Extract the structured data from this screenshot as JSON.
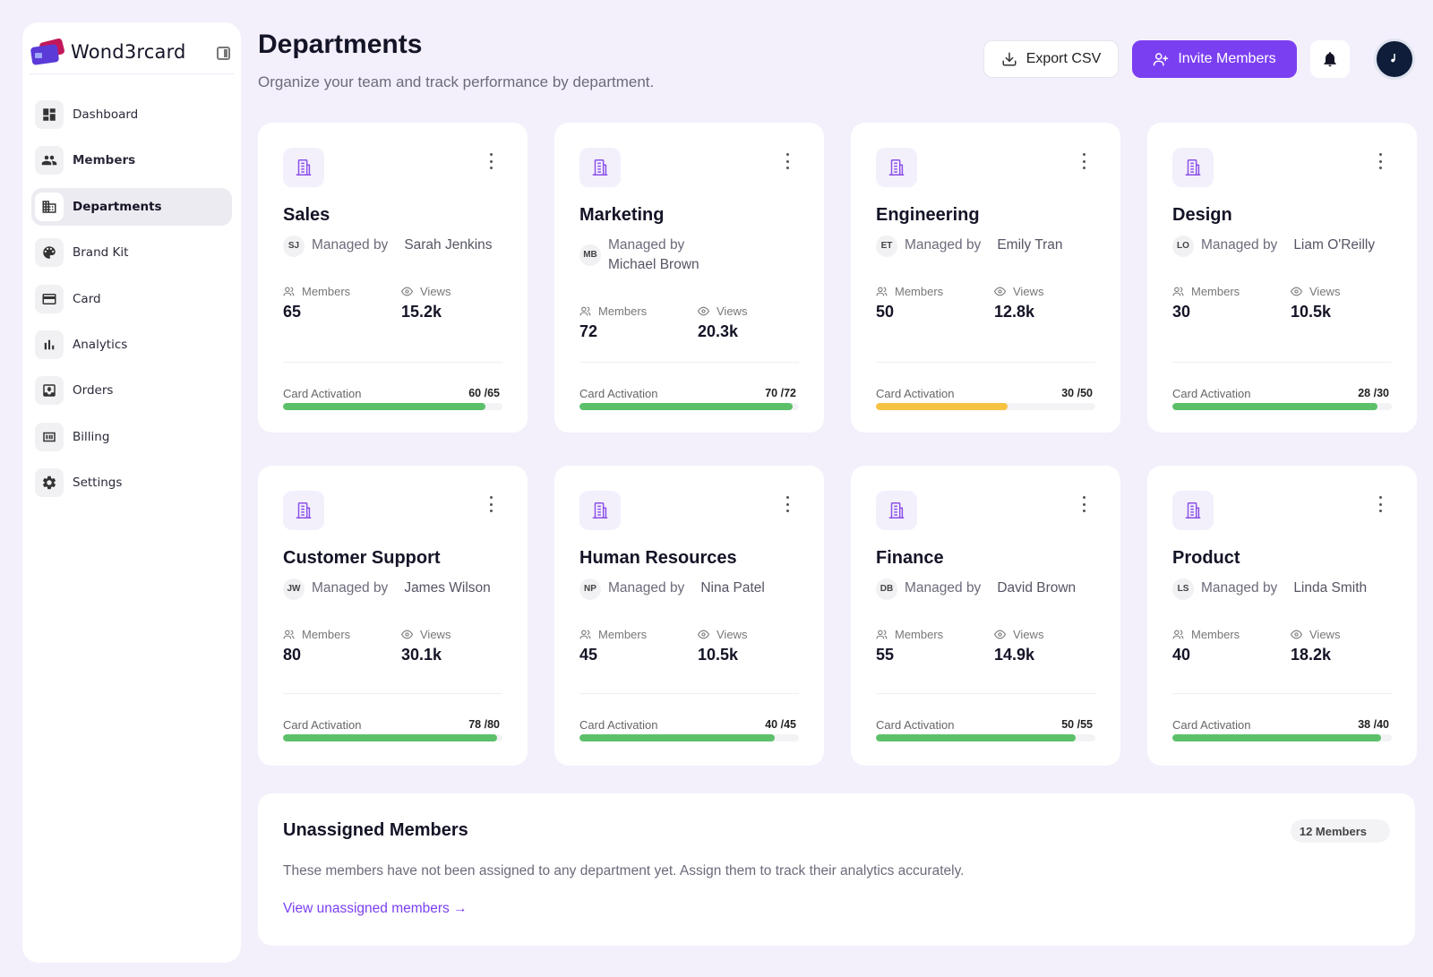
{
  "app": {
    "brand": "Wond3rcard"
  },
  "sidebar": {
    "items": [
      {
        "label": "Dashboard",
        "icon": "dashboard-icon"
      },
      {
        "label": "Members",
        "icon": "members-icon"
      },
      {
        "label": "Departments",
        "icon": "departments-icon",
        "active": true
      },
      {
        "label": "Brand Kit",
        "icon": "palette-icon"
      },
      {
        "label": "Card",
        "icon": "card-icon"
      },
      {
        "label": "Analytics",
        "icon": "analytics-icon"
      },
      {
        "label": "Orders",
        "icon": "orders-icon"
      },
      {
        "label": "Billing",
        "icon": "billing-icon"
      },
      {
        "label": "Settings",
        "icon": "gear-icon"
      }
    ]
  },
  "header": {
    "title": "Departments",
    "subtitle": "Organize your team and track performance by department.",
    "export_label": "Export CSV",
    "invite_label": "Invite Members"
  },
  "labels": {
    "managed_by": "Managed by",
    "members": "Members",
    "views": "Views",
    "card_activation": "Card Activation"
  },
  "departments": [
    {
      "name": "Sales",
      "initials": "SJ",
      "manager": "Sarah Jenkins",
      "members": "65",
      "views": "15.2k",
      "activation": "60 /65",
      "activation_fraction": 0.923,
      "bar_color": "#5cc06a"
    },
    {
      "name": "Marketing",
      "initials": "MB",
      "manager": "Michael Brown",
      "members": "72",
      "views": "20.3k",
      "activation": "70 /72",
      "activation_fraction": 0.972,
      "bar_color": "#5cc06a"
    },
    {
      "name": "Engineering",
      "initials": "ET",
      "manager": "Emily Tran",
      "members": "50",
      "views": "12.8k",
      "activation": "30 /50",
      "activation_fraction": 0.6,
      "bar_color": "#f5c242"
    },
    {
      "name": "Design",
      "initials": "LO",
      "manager": "Liam O'Reilly",
      "members": "30",
      "views": "10.5k",
      "activation": "28 /30",
      "activation_fraction": 0.933,
      "bar_color": "#5cc06a"
    },
    {
      "name": "Customer Support",
      "initials": "JW",
      "manager": "James Wilson",
      "members": "80",
      "views": "30.1k",
      "activation": "78 /80",
      "activation_fraction": 0.975,
      "bar_color": "#5cc06a"
    },
    {
      "name": "Human Resources",
      "initials": "NP",
      "manager": "Nina Patel",
      "members": "45",
      "views": "10.5k",
      "activation": "40 /45",
      "activation_fraction": 0.889,
      "bar_color": "#5cc06a"
    },
    {
      "name": "Finance",
      "initials": "DB",
      "manager": "David Brown",
      "members": "55",
      "views": "14.9k",
      "activation": "50 /55",
      "activation_fraction": 0.909,
      "bar_color": "#5cc06a"
    },
    {
      "name": "Product",
      "initials": "LS",
      "manager": "Linda Smith",
      "members": "40",
      "views": "18.2k",
      "activation": "38 /40",
      "activation_fraction": 0.95,
      "bar_color": "#5cc06a"
    }
  ],
  "unassigned": {
    "title": "Unassigned Members",
    "count_badge": "12 Members",
    "description": "These members have not been assigned to any department yet. Assign them to track their analytics accurately.",
    "link_label": "View unassigned members →"
  },
  "colors": {
    "accent": "#7b3ff2",
    "green": "#5cc06a",
    "amber": "#f5c242",
    "background": "#f3f0fb"
  }
}
